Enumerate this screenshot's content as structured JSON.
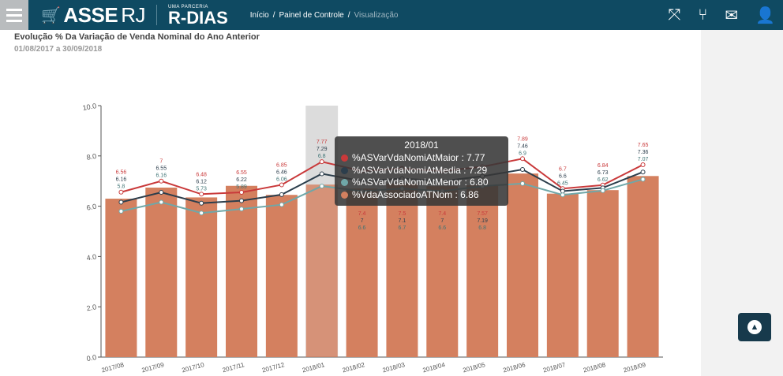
{
  "header": {
    "brand": "ASSERJ",
    "brand_a": "ASSE",
    "brand_b": "RJ",
    "partner_small": "UMA PARCERIA",
    "partner": "R-DIAS",
    "breadcrumb": [
      "Início",
      "Painel de Controle",
      "Visualização"
    ]
  },
  "panel": {
    "title": "Evolução % Da Variação de Venda Nominal do Ano Anterior",
    "date_range": "01/08/2017 a 30/09/2018"
  },
  "tooltip": {
    "title": "2018/01",
    "rows": [
      "%ASVarVdaNomiAtMaior : 7.77",
      "%ASVarVdaNomiAtMedia : 7.29",
      "%ASVarVdaNomiAtMenor : 6.80",
      "%VdaAssociadoATNom : 6.86"
    ]
  },
  "chart_data": {
    "type": "bar+line",
    "title": "Evolução % Da Variação de Venda Nominal do Ano Anterior",
    "categories": [
      "2017/08",
      "2017/09",
      "2017/10",
      "2017/11",
      "2017/12",
      "2018/01",
      "2018/02",
      "2018/03",
      "2018/04",
      "2018/05",
      "2018/06",
      "2018/07",
      "2018/08",
      "2018/09"
    ],
    "ylim": [
      0,
      10
    ],
    "yticks": [
      "0.0",
      "2.0",
      "4.0",
      "6.0",
      "8.0",
      "10.0"
    ],
    "highlight": "2018/01",
    "bar": {
      "name": "%VdaAssociadoATNom",
      "color": "#d4805f",
      "values": [
        6.3,
        6.74,
        6.35,
        6.81,
        6.45,
        6.86,
        6.7,
        6.9,
        6.8,
        6.83,
        7.3,
        6.5,
        6.64,
        7.2
      ]
    },
    "series": [
      {
        "name": "%ASVarVdaNomiAtMaior",
        "color": "#c9393a",
        "values": [
          6.56,
          7.0,
          6.48,
          6.55,
          6.85,
          7.77,
          7.4,
          7.5,
          7.4,
          7.57,
          7.89,
          6.7,
          6.84,
          7.65
        ]
      },
      {
        "name": "%ASVarVdaNomiAtMedia",
        "color": "#2c3e4c",
        "values": [
          6.16,
          6.55,
          6.12,
          6.22,
          6.46,
          7.29,
          7.0,
          7.1,
          7.0,
          7.19,
          7.46,
          6.6,
          6.73,
          7.36
        ]
      },
      {
        "name": "%ASVarVdaNomiAtMenor",
        "color": "#6fa7a8",
        "values": [
          5.8,
          6.16,
          5.73,
          5.89,
          6.06,
          6.8,
          6.6,
          6.7,
          6.6,
          6.8,
          6.9,
          6.45,
          6.62,
          7.07
        ]
      }
    ]
  },
  "colors": {
    "header": "#0f4a62",
    "bar": "#d4805f"
  }
}
